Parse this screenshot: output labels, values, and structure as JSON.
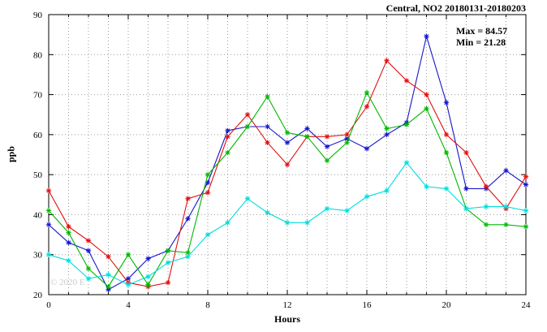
{
  "header": {
    "title": "Central, NO2 20180131-20180203"
  },
  "annotation": {
    "max_label": "Max = 84.57",
    "min_label": "Min = 21.28"
  },
  "watermark": "© 2020 E",
  "chart_data": {
    "type": "line",
    "title": "Central, NO2 20180131-20180203",
    "xlabel": "Hours",
    "ylabel": "ppb",
    "xlim": [
      0,
      24
    ],
    "ylim": [
      20,
      90
    ],
    "xticks": [
      0,
      4,
      8,
      12,
      16,
      20,
      24
    ],
    "yticks": [
      20,
      30,
      40,
      50,
      60,
      70,
      80,
      90
    ],
    "xgrid_interval": 1,
    "grid": true,
    "legend": "none",
    "marker": "asterisk",
    "max_value": 84.57,
    "min_value": 21.28,
    "x": [
      0,
      1,
      2,
      3,
      4,
      5,
      6,
      7,
      8,
      9,
      10,
      11,
      12,
      13,
      14,
      15,
      16,
      17,
      18,
      19,
      20,
      21,
      22,
      23,
      24
    ],
    "series": [
      {
        "name": "series-blue",
        "color": "#1515cd",
        "values": [
          37.5,
          33,
          31,
          21.28,
          24,
          29,
          31,
          39,
          48,
          61,
          62,
          62,
          58,
          61.5,
          57,
          59,
          56.5,
          60,
          63,
          84.57,
          68,
          46.5,
          46.5,
          51,
          47.5
        ]
      },
      {
        "name": "series-red",
        "color": "#e01010",
        "values": [
          46,
          37,
          33.5,
          29.5,
          23,
          22,
          23,
          44,
          45.5,
          59.5,
          65,
          58,
          52.5,
          59.5,
          59.5,
          60,
          67,
          78.5,
          73.5,
          70,
          60,
          55.5,
          47,
          41.5,
          49.5
        ]
      },
      {
        "name": "series-green",
        "color": "#00b800",
        "values": [
          41,
          35.5,
          26.5,
          22,
          30,
          22.5,
          31,
          30.5,
          50,
          55.5,
          62,
          69.5,
          60.5,
          59.5,
          53.5,
          58,
          70.5,
          61.5,
          62.5,
          66.5,
          55.5,
          41.5,
          37.5,
          37.5,
          37
        ]
      },
      {
        "name": "series-cyan",
        "color": "#00dcdc",
        "values": [
          30,
          28.5,
          24,
          25,
          22.5,
          24.5,
          28,
          29.5,
          35,
          38,
          44,
          40.5,
          38,
          38,
          41.5,
          41,
          44.5,
          46,
          53,
          47,
          46.5,
          41.5,
          42,
          42,
          41
        ]
      }
    ]
  }
}
